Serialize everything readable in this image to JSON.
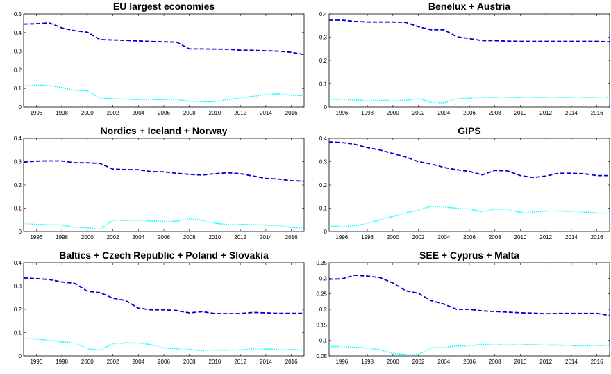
{
  "chart_data": [
    {
      "type": "line",
      "title": "EU largest economies",
      "x": [
        1995,
        1996,
        1997,
        1998,
        1999,
        2000,
        2001,
        2002,
        2003,
        2004,
        2005,
        2006,
        2007,
        2008,
        2009,
        2010,
        2011,
        2012,
        2013,
        2014,
        2015,
        2016,
        2017
      ],
      "xticks": [
        "1996",
        "1998",
        "2000",
        "2002",
        "2004",
        "2006",
        "2008",
        "2010",
        "2012",
        "2014",
        "2016"
      ],
      "ylim": [
        0,
        0.5
      ],
      "yticks": [
        "0",
        "0.1",
        "0.2",
        "0.3",
        "0.4",
        "0.5"
      ],
      "grid": false,
      "series": [
        {
          "color": "#0000cd",
          "style": "dashed",
          "values": [
            0.445,
            0.447,
            0.452,
            0.425,
            0.41,
            0.402,
            0.362,
            0.36,
            0.358,
            0.355,
            0.352,
            0.35,
            0.348,
            0.312,
            0.312,
            0.311,
            0.31,
            0.305,
            0.305,
            0.302,
            0.3,
            0.294,
            0.282
          ]
        },
        {
          "color": "#00ffff",
          "style": "dotted",
          "values": [
            0.115,
            0.118,
            0.117,
            0.105,
            0.09,
            0.088,
            0.048,
            0.045,
            0.043,
            0.04,
            0.04,
            0.04,
            0.04,
            0.03,
            0.028,
            0.028,
            0.04,
            0.048,
            0.058,
            0.068,
            0.072,
            0.063,
            0.063
          ]
        }
      ]
    },
    {
      "type": "line",
      "title": "Benelux + Austria",
      "x": [
        1995,
        1996,
        1997,
        1998,
        1999,
        2000,
        2001,
        2002,
        2003,
        2004,
        2005,
        2006,
        2007,
        2008,
        2009,
        2010,
        2011,
        2012,
        2013,
        2014,
        2015,
        2016,
        2017
      ],
      "xticks": [
        "1996",
        "1998",
        "2000",
        "2002",
        "2004",
        "2006",
        "2008",
        "2010",
        "2012",
        "2014",
        "2016"
      ],
      "ylim": [
        0,
        0.4
      ],
      "yticks": [
        "0",
        "0.1",
        "0.2",
        "0.3",
        "0.4"
      ],
      "grid": false,
      "series": [
        {
          "color": "#0000cd",
          "style": "dashed",
          "values": [
            0.373,
            0.373,
            0.368,
            0.365,
            0.365,
            0.365,
            0.364,
            0.345,
            0.332,
            0.332,
            0.302,
            0.294,
            0.285,
            0.285,
            0.283,
            0.282,
            0.282,
            0.282,
            0.282,
            0.282,
            0.282,
            0.282,
            0.28
          ]
        },
        {
          "color": "#00ffff",
          "style": "dotted",
          "values": [
            0.035,
            0.032,
            0.03,
            0.028,
            0.028,
            0.028,
            0.028,
            0.038,
            0.02,
            0.018,
            0.035,
            0.038,
            0.042,
            0.042,
            0.042,
            0.041,
            0.042,
            0.042,
            0.042,
            0.042,
            0.042,
            0.042,
            0.042
          ]
        }
      ]
    },
    {
      "type": "line",
      "title": "Nordics + Iceland + Norway",
      "x": [
        1995,
        1996,
        1997,
        1998,
        1999,
        2000,
        2001,
        2002,
        2003,
        2004,
        2005,
        2006,
        2007,
        2008,
        2009,
        2010,
        2011,
        2012,
        2013,
        2014,
        2015,
        2016,
        2017
      ],
      "xticks": [
        "1996",
        "1998",
        "2000",
        "2002",
        "2004",
        "2006",
        "2008",
        "2010",
        "2012",
        "2014",
        "2016"
      ],
      "ylim": [
        0,
        0.4
      ],
      "yticks": [
        "0",
        "0.1",
        "0.2",
        "0.3",
        "0.4"
      ],
      "grid": false,
      "series": [
        {
          "color": "#0000cd",
          "style": "dashed",
          "values": [
            0.298,
            0.302,
            0.303,
            0.303,
            0.295,
            0.295,
            0.292,
            0.268,
            0.266,
            0.265,
            0.257,
            0.256,
            0.25,
            0.245,
            0.242,
            0.248,
            0.252,
            0.248,
            0.238,
            0.228,
            0.225,
            0.218,
            0.216
          ]
        },
        {
          "color": "#00ffff",
          "style": "dotted",
          "values": [
            0.035,
            0.03,
            0.03,
            0.028,
            0.018,
            0.016,
            0.01,
            0.048,
            0.048,
            0.048,
            0.045,
            0.044,
            0.044,
            0.055,
            0.048,
            0.036,
            0.03,
            0.03,
            0.03,
            0.028,
            0.026,
            0.018,
            0.015
          ]
        }
      ]
    },
    {
      "type": "line",
      "title": "GIPS",
      "x": [
        1995,
        1996,
        1997,
        1998,
        1999,
        2000,
        2001,
        2002,
        2003,
        2004,
        2005,
        2006,
        2007,
        2008,
        2009,
        2010,
        2011,
        2012,
        2013,
        2014,
        2015,
        2016,
        2017
      ],
      "xticks": [
        "1996",
        "1998",
        "2000",
        "2002",
        "2004",
        "2006",
        "2008",
        "2010",
        "2012",
        "2014",
        "2016"
      ],
      "ylim": [
        0,
        0.4
      ],
      "yticks": [
        "0",
        "0.1",
        "0.2",
        "0.3",
        "0.4"
      ],
      "grid": false,
      "series": [
        {
          "color": "#0000cd",
          "style": "dashed",
          "values": [
            0.385,
            0.382,
            0.375,
            0.36,
            0.35,
            0.335,
            0.32,
            0.3,
            0.29,
            0.275,
            0.265,
            0.258,
            0.243,
            0.262,
            0.26,
            0.24,
            0.232,
            0.238,
            0.25,
            0.25,
            0.248,
            0.24,
            0.24
          ]
        },
        {
          "color": "#00ffff",
          "style": "dotted",
          "values": [
            0.022,
            0.022,
            0.025,
            0.035,
            0.05,
            0.065,
            0.08,
            0.092,
            0.108,
            0.105,
            0.1,
            0.096,
            0.085,
            0.097,
            0.095,
            0.082,
            0.083,
            0.088,
            0.088,
            0.087,
            0.083,
            0.08,
            0.078
          ]
        }
      ]
    },
    {
      "type": "line",
      "title": "Baltics + Czech Republic + Poland + Slovakia",
      "x": [
        1995,
        1996,
        1997,
        1998,
        1999,
        2000,
        2001,
        2002,
        2003,
        2004,
        2005,
        2006,
        2007,
        2008,
        2009,
        2010,
        2011,
        2012,
        2013,
        2014,
        2015,
        2016,
        2017
      ],
      "xticks": [
        "1996",
        "1998",
        "2000",
        "2002",
        "2004",
        "2006",
        "2008",
        "2010",
        "2012",
        "2014",
        "2016"
      ],
      "ylim": [
        0,
        0.4
      ],
      "yticks": [
        "0",
        "0.1",
        "0.2",
        "0.3",
        "0.4"
      ],
      "grid": false,
      "series": [
        {
          "color": "#0000cd",
          "style": "dashed",
          "values": [
            0.335,
            0.332,
            0.328,
            0.318,
            0.312,
            0.278,
            0.272,
            0.248,
            0.238,
            0.205,
            0.198,
            0.198,
            0.195,
            0.185,
            0.19,
            0.182,
            0.182,
            0.182,
            0.187,
            0.185,
            0.183,
            0.183,
            0.183
          ]
        },
        {
          "color": "#00ffff",
          "style": "dotted",
          "values": [
            0.075,
            0.072,
            0.068,
            0.06,
            0.057,
            0.03,
            0.025,
            0.052,
            0.056,
            0.055,
            0.048,
            0.035,
            0.03,
            0.028,
            0.022,
            0.025,
            0.025,
            0.025,
            0.03,
            0.03,
            0.028,
            0.027,
            0.025
          ]
        }
      ]
    },
    {
      "type": "line",
      "title": "SEE + Cyprus + Malta",
      "x": [
        1995,
        1996,
        1997,
        1998,
        1999,
        2000,
        2001,
        2002,
        2003,
        2004,
        2005,
        2006,
        2007,
        2008,
        2009,
        2010,
        2011,
        2012,
        2013,
        2014,
        2015,
        2016,
        2017
      ],
      "xticks": [
        "1996",
        "1998",
        "2000",
        "2002",
        "2004",
        "2006",
        "2008",
        "2010",
        "2012",
        "2014",
        "2016"
      ],
      "ylim": [
        0.05,
        0.35
      ],
      "yticks": [
        "0.05",
        "0.1",
        "0.15",
        "0.2",
        "0.25",
        "0.3",
        "0.35"
      ],
      "grid": false,
      "series": [
        {
          "color": "#0000cd",
          "style": "dashed",
          "values": [
            0.297,
            0.298,
            0.31,
            0.307,
            0.302,
            0.285,
            0.26,
            0.252,
            0.228,
            0.217,
            0.2,
            0.2,
            0.195,
            0.193,
            0.191,
            0.189,
            0.188,
            0.186,
            0.187,
            0.187,
            0.187,
            0.187,
            0.18
          ]
        },
        {
          "color": "#00ffff",
          "style": "dotted",
          "values": [
            0.08,
            0.08,
            0.078,
            0.075,
            0.07,
            0.058,
            0.055,
            0.055,
            0.075,
            0.078,
            0.082,
            0.082,
            0.087,
            0.086,
            0.085,
            0.086,
            0.086,
            0.085,
            0.085,
            0.083,
            0.083,
            0.083,
            0.085
          ]
        }
      ]
    }
  ]
}
